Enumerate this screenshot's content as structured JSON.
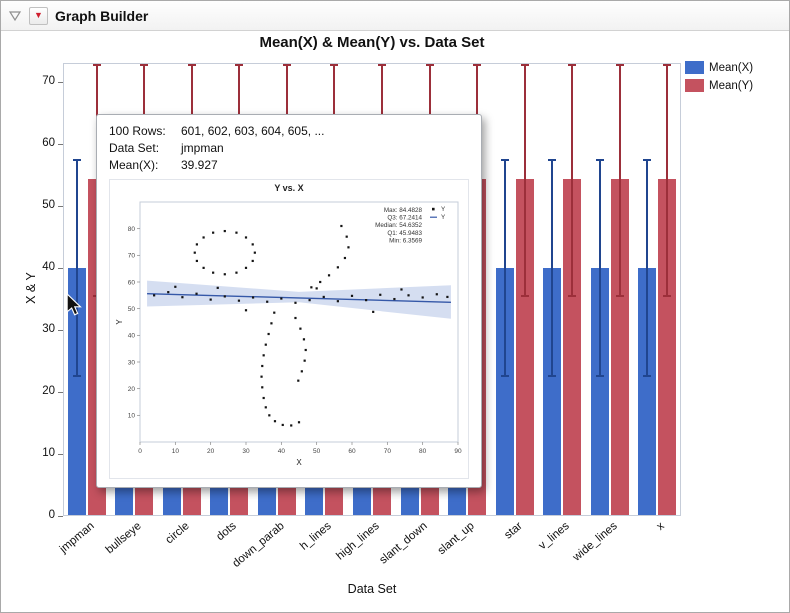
{
  "window": {
    "title": "Graph Builder"
  },
  "chart_data": {
    "type": "bar",
    "title": "Mean(X) & Mean(Y) vs. Data Set",
    "xlabel": "Data Set",
    "ylabel": "X & Y",
    "categories": [
      "jmpman",
      "bullseye",
      "circle",
      "dots",
      "down_parab",
      "h_lines",
      "high_lines",
      "slant_down",
      "slant_up",
      "star",
      "v_lines",
      "wide_lines",
      "x"
    ],
    "series": [
      {
        "name": "Mean(X)",
        "color": "#3e6dc9",
        "error_color": "#20458f",
        "values": [
          39.93,
          39.93,
          39.93,
          39.93,
          39.93,
          39.93,
          39.93,
          39.93,
          39.93,
          39.93,
          39.93,
          39.93,
          39.93
        ],
        "err_low": 22.6,
        "err_high": 57.3
      },
      {
        "name": "Mean(Y)",
        "color": "#c4525f",
        "error_color": "#9c2f3a",
        "values": [
          54.3,
          54.3,
          54.3,
          54.3,
          54.3,
          54.3,
          54.3,
          54.3,
          54.3,
          54.3,
          54.3,
          54.3,
          54.3
        ],
        "err_low": 35.4,
        "err_high": 72.6
      }
    ],
    "ylim": [
      0,
      73
    ],
    "y_ticks": [
      0,
      10,
      20,
      30,
      40,
      50,
      60,
      70
    ],
    "grid": false,
    "legend_position": "top-right"
  },
  "tooltip": {
    "lines": [
      {
        "label": "100 Rows:",
        "value": "601, 602, 603, 604, 605, ..."
      },
      {
        "label": "Data Set:",
        "value": "jmpman"
      },
      {
        "label": "Mean(X):",
        "value": "39.927"
      }
    ],
    "chart": {
      "type": "scatter",
      "title": "Y vs. X",
      "xlabel": "X",
      "ylabel": "Y",
      "x_ticks": [
        0,
        10,
        20,
        30,
        40,
        50,
        60,
        70,
        80,
        90
      ],
      "y_ticks": [
        10,
        20,
        30,
        40,
        50,
        60,
        70,
        80
      ],
      "stats": [
        "Max: 84.4828",
        "Q3: 67.2414",
        "Median: 54.6352",
        "Q1: 45.9483",
        "Min: 6.3569"
      ],
      "legend": [
        {
          "marker": "point",
          "label": "Y"
        },
        {
          "marker": "line",
          "label": "Y"
        }
      ],
      "fit_line": {
        "x1": 2,
        "y1": 55.6,
        "x2": 88,
        "y2": 52.4,
        "color": "#3558a8"
      },
      "band_color": "#b3c2e6",
      "band": [
        [
          2,
          60.5
        ],
        [
          45,
          56.3
        ],
        [
          88,
          58.8
        ],
        [
          88,
          46.2
        ],
        [
          45,
          52.4
        ],
        [
          2,
          50.8
        ]
      ],
      "points": [
        [
          32.5,
          71
        ],
        [
          31.9,
          74.1
        ],
        [
          30,
          76.7
        ],
        [
          27.3,
          78.5
        ],
        [
          24,
          79.1
        ],
        [
          20.7,
          78.5
        ],
        [
          18,
          76.7
        ],
        [
          16.1,
          74.1
        ],
        [
          15.5,
          71
        ],
        [
          16.1,
          67.9
        ],
        [
          18,
          65.3
        ],
        [
          20.7,
          63.5
        ],
        [
          24,
          62.9
        ],
        [
          27.3,
          63.5
        ],
        [
          30,
          65.3
        ],
        [
          31.9,
          67.9
        ],
        [
          57,
          81
        ],
        [
          58.5,
          77
        ],
        [
          59,
          73
        ],
        [
          58,
          69
        ],
        [
          56,
          65.5
        ],
        [
          53.5,
          62.5
        ],
        [
          51,
          60
        ],
        [
          48.5,
          58
        ],
        [
          4,
          55
        ],
        [
          8,
          56.2
        ],
        [
          12,
          54.3
        ],
        [
          16,
          55.6
        ],
        [
          20,
          53.4
        ],
        [
          24,
          54.6
        ],
        [
          28,
          53
        ],
        [
          32,
          54.2
        ],
        [
          36,
          52.6
        ],
        [
          40,
          53.8
        ],
        [
          44,
          52.2
        ],
        [
          48,
          53.2
        ],
        [
          52,
          54.4
        ],
        [
          56,
          52.8
        ],
        [
          60,
          54.8
        ],
        [
          64,
          53.2
        ],
        [
          68,
          55.2
        ],
        [
          72,
          53.6
        ],
        [
          76,
          55
        ],
        [
          80,
          54.2
        ],
        [
          84,
          55.4
        ],
        [
          87,
          54.4
        ],
        [
          10,
          58.2
        ],
        [
          30,
          49.4
        ],
        [
          50,
          57.6
        ],
        [
          66,
          48.8
        ],
        [
          22,
          57.8
        ],
        [
          74,
          57.2
        ],
        [
          38,
          48.5
        ],
        [
          37.2,
          44.5
        ],
        [
          36.4,
          40.5
        ],
        [
          35.6,
          36.5
        ],
        [
          35,
          32.5
        ],
        [
          34.6,
          28.5
        ],
        [
          34.4,
          24.5
        ],
        [
          34.6,
          20.5
        ],
        [
          35,
          16.5
        ],
        [
          35.6,
          13
        ],
        [
          36.6,
          10
        ],
        [
          38.2,
          7.8
        ],
        [
          40.4,
          6.4
        ],
        [
          42.8,
          6.2
        ],
        [
          45,
          7.4
        ],
        [
          44,
          46.5
        ],
        [
          45.4,
          42.5
        ],
        [
          46.4,
          38.5
        ],
        [
          46.9,
          34.5
        ],
        [
          46.6,
          30.5
        ],
        [
          45.8,
          26.5
        ],
        [
          44.8,
          23
        ]
      ]
    }
  }
}
